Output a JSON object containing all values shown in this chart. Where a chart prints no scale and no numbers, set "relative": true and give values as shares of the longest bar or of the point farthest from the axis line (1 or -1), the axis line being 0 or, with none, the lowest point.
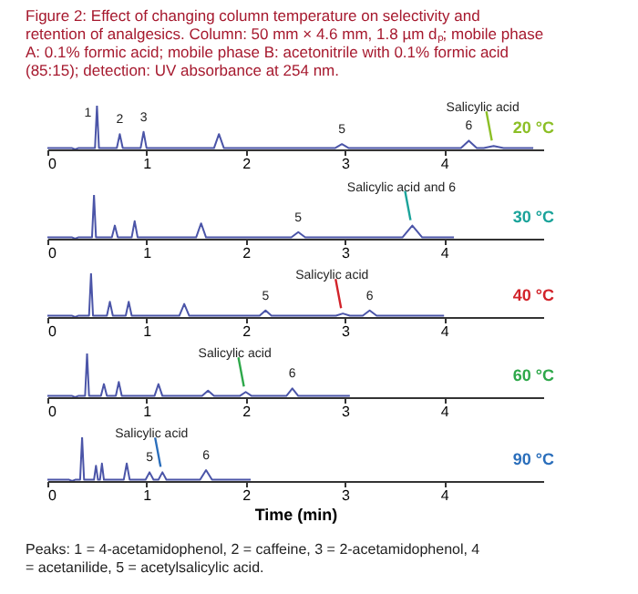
{
  "chart_data": [
    {
      "type": "line",
      "title": "Figure 2: Effect of changing column temperature on selectivity and retention of analgesics. Column: 50 mm × 4.6 mm, 1.8 µm dₚ; mobile phase A: 0.1% formic acid; mobile phase B: acetonitrile with 0.1% formic acid (85:15); detection: UV absorbance at 254 nm.",
      "relative": true,
      "xlim": [
        0,
        5
      ],
      "xticks": [
        0,
        1,
        2,
        3,
        4
      ],
      "x": [
        0,
        0.25,
        0.28,
        0.31,
        0.48,
        0.5,
        0.52,
        0.7,
        0.73,
        0.76,
        0.94,
        0.97,
        1.0,
        1.68,
        1.73,
        1.78,
        2.9,
        2.97,
        3.04,
        4.17,
        4.25,
        4.33,
        4.4,
        4.5,
        4.6,
        4.9
      ],
      "series": [
        {
          "color": "#4b55a8",
          "values": [
            0.03,
            0.03,
            0,
            0.03,
            0.03,
            1,
            0.03,
            0.03,
            0.35,
            0.03,
            0.03,
            0.4,
            0.03,
            0.03,
            0.35,
            0.03,
            0.03,
            0.12,
            0.03,
            0.03,
            0.2,
            0.03,
            0.03,
            0.08,
            0.03,
            0.03
          ]
        }
      ],
      "annotations": [
        "20 °C",
        {
          "text": "1",
          "x": 0.5,
          "y": 1
        },
        {
          "text": "2",
          "x": 0.73,
          "y": 0.35
        },
        {
          "text": "3",
          "x": 0.97,
          "y": 0.4
        },
        {
          "text": "5",
          "x": 2.97,
          "y": 0.12
        },
        {
          "text": "6",
          "x": 4.25,
          "y": 0.2
        },
        {
          "text": "Salicylic acid",
          "x": 4.5,
          "y": 0.08
        }
      ]
    },
    {
      "type": "line",
      "relative": true,
      "xlim": [
        0,
        5
      ],
      "xticks": [
        0,
        1,
        2,
        3,
        4
      ],
      "x": [
        0,
        0.25,
        0.28,
        0.31,
        0.45,
        0.47,
        0.49,
        0.65,
        0.68,
        0.71,
        0.85,
        0.88,
        0.91,
        1.5,
        1.55,
        1.6,
        2.46,
        2.53,
        2.6,
        3.58,
        3.68,
        3.78,
        4.1
      ],
      "series": [
        {
          "color": "#4b55a8",
          "values": [
            0.03,
            0.03,
            0,
            0.03,
            0.03,
            1,
            0.03,
            0.03,
            0.3,
            0.03,
            0.03,
            0.4,
            0.03,
            0.03,
            0.35,
            0.03,
            0.03,
            0.15,
            0.03,
            0.03,
            0.3,
            0.03,
            0.03
          ]
        }
      ],
      "annotations": [
        "30 °C",
        {
          "text": "5",
          "x": 2.53,
          "y": 0.15
        },
        {
          "text": "Salicylic acid and 6",
          "x": 3.68,
          "y": 0.3
        }
      ]
    },
    {
      "type": "line",
      "relative": true,
      "xlim": [
        0,
        5
      ],
      "xticks": [
        0,
        1,
        2,
        3,
        4
      ],
      "x": [
        0,
        0.25,
        0.28,
        0.31,
        0.42,
        0.44,
        0.46,
        0.6,
        0.63,
        0.66,
        0.79,
        0.82,
        0.85,
        1.33,
        1.38,
        1.43,
        2.14,
        2.2,
        2.26,
        2.91,
        2.98,
        3.05,
        3.18,
        3.25,
        3.32,
        4.0
      ],
      "series": [
        {
          "color": "#4b55a8",
          "values": [
            0.03,
            0.03,
            0,
            0.03,
            0.03,
            1,
            0.03,
            0.03,
            0.35,
            0.03,
            0.03,
            0.35,
            0.03,
            0.03,
            0.3,
            0.03,
            0.03,
            0.15,
            0.03,
            0.03,
            0.08,
            0.03,
            0.03,
            0.15,
            0.03,
            0.03
          ]
        }
      ],
      "annotations": [
        "40 °C",
        {
          "text": "5",
          "x": 2.2,
          "y": 0.15
        },
        {
          "text": "Salicylic acid",
          "x": 2.98,
          "y": 0.08
        },
        {
          "text": "6",
          "x": 3.25,
          "y": 0.15
        }
      ]
    },
    {
      "type": "line",
      "relative": true,
      "xlim": [
        0,
        5
      ],
      "xticks": [
        0,
        1,
        2,
        3,
        4
      ],
      "x": [
        0,
        0.25,
        0.28,
        0.31,
        0.38,
        0.4,
        0.42,
        0.54,
        0.57,
        0.6,
        0.69,
        0.72,
        0.75,
        1.08,
        1.12,
        1.16,
        1.56,
        1.62,
        1.68,
        1.94,
        2.0,
        2.06,
        2.41,
        2.47,
        2.53,
        3.05
      ],
      "series": [
        {
          "color": "#4b55a8",
          "values": [
            0.03,
            0.03,
            0,
            0.03,
            0.03,
            1,
            0.03,
            0.03,
            0.3,
            0.03,
            0.03,
            0.35,
            0.03,
            0.03,
            0.3,
            0.03,
            0.03,
            0.15,
            0.03,
            0.03,
            0.12,
            0.03,
            0.03,
            0.2,
            0.03,
            0.03
          ]
        }
      ],
      "annotations": [
        "60 °C",
        {
          "text": "Salicylic acid",
          "x": 2.0,
          "y": 0.12
        },
        {
          "text": "6",
          "x": 2.47,
          "y": 0.2
        }
      ]
    },
    {
      "type": "line",
      "relative": true,
      "xlim": [
        0,
        5
      ],
      "xticks": [
        0,
        1,
        2,
        3,
        4
      ],
      "xlabel": "Time (min)",
      "x": [
        0,
        0.22,
        0.25,
        0.28,
        0.33,
        0.35,
        0.37,
        0.47,
        0.49,
        0.51,
        0.53,
        0.55,
        0.57,
        0.77,
        0.8,
        0.83,
        0.99,
        1.03,
        1.07,
        1.12,
        1.16,
        1.2,
        1.54,
        1.6,
        1.66,
        2.05
      ],
      "series": [
        {
          "color": "#4b55a8",
          "values": [
            0.03,
            0.03,
            0,
            0.03,
            0.03,
            1,
            0.03,
            0.03,
            0.35,
            0.03,
            0.03,
            0.4,
            0.03,
            0.03,
            0.4,
            0.03,
            0.03,
            0.2,
            0.03,
            0.03,
            0.2,
            0.03,
            0.03,
            0.25,
            0.03,
            0.03
          ]
        }
      ],
      "annotations": [
        "90 °C",
        {
          "text": "5",
          "x": 1.03,
          "y": 0.2
        },
        {
          "text": "Salicylic acid",
          "x": 1.16,
          "y": 0.2
        },
        {
          "text": "6",
          "x": 1.6,
          "y": 0.25
        },
        "Peaks: 1 = 4-acetamidophenol, 2 = caffeine, 3 = 2-acetamidophenol, 4 = acetanilide, 5 = acetylsalicylic acid."
      ]
    }
  ]
}
